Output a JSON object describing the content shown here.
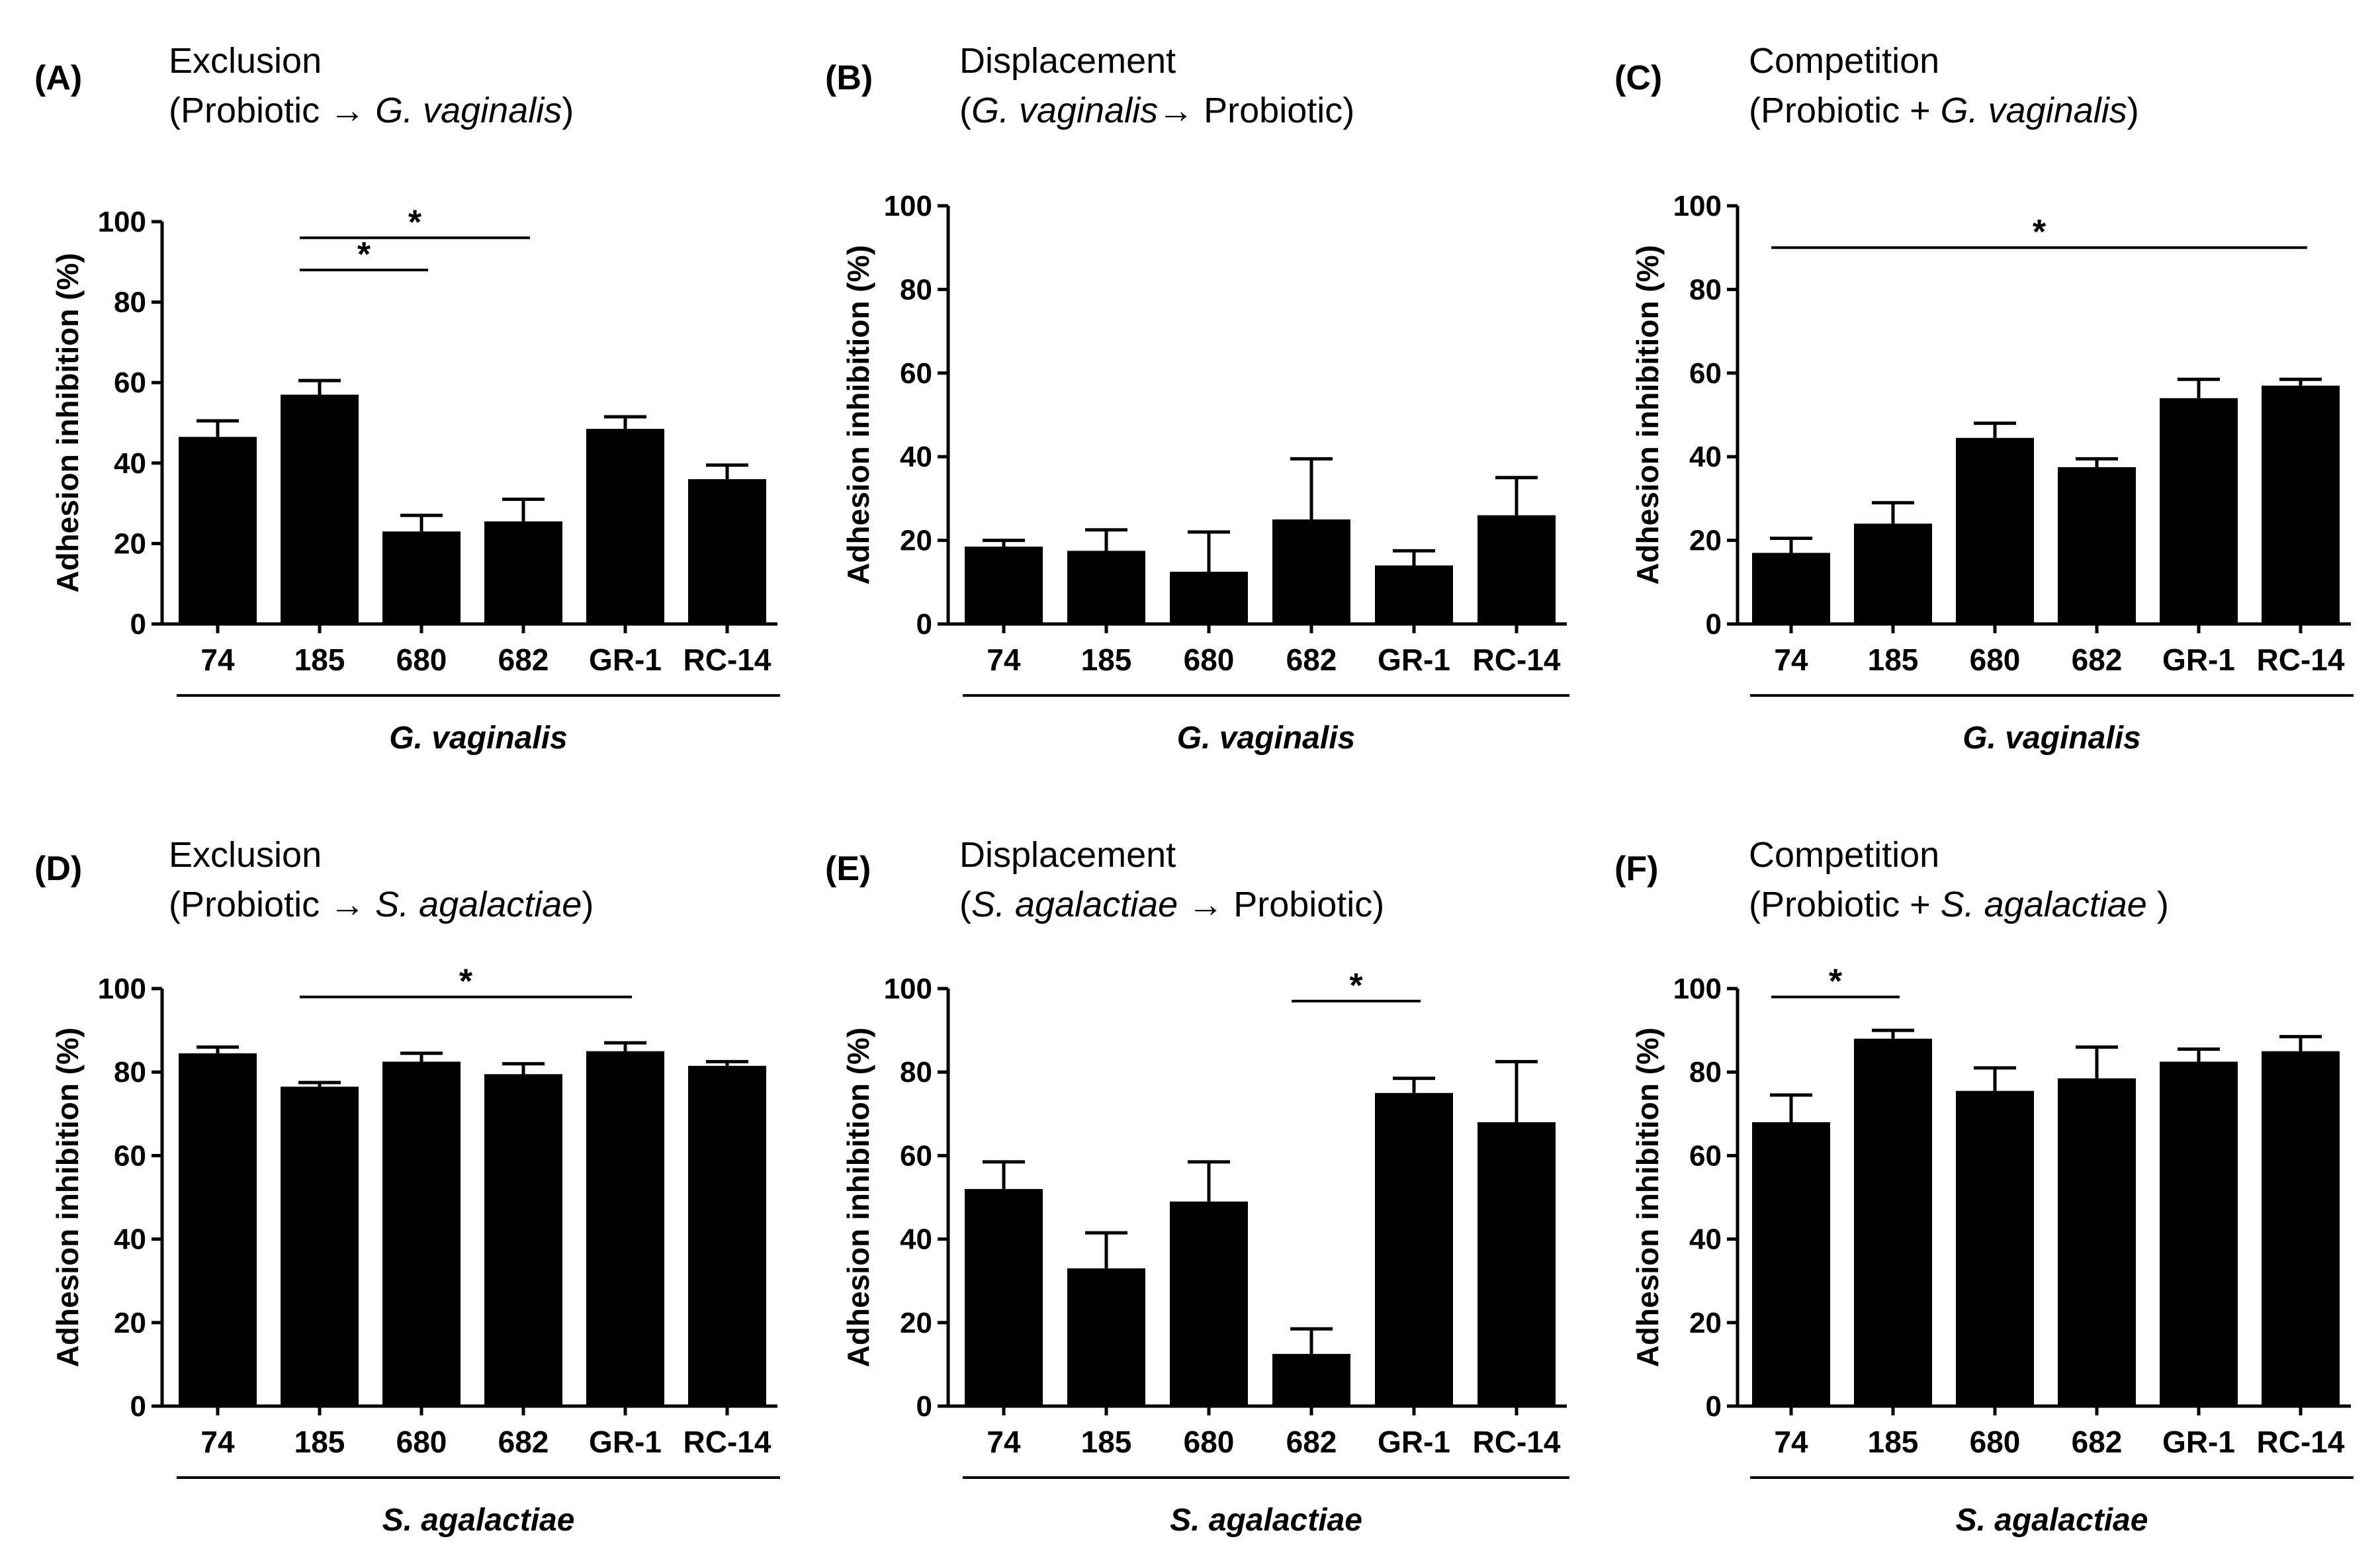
{
  "figure": {
    "background": "#ffffff",
    "bar_color": "#000000"
  },
  "chart_data": [
    {
      "type": "bar",
      "panel": "(A)",
      "title_line1": "Exclusion",
      "title_line2": [
        {
          "text": "(Probiotic → ",
          "italic": false
        },
        {
          "text": "G. vaginalis",
          "italic": true
        },
        {
          "text": ")",
          "italic": false
        }
      ],
      "categories": [
        "74",
        "185",
        "680",
        "682",
        "GR-1",
        "RC-14"
      ],
      "values": [
        46.5,
        57,
        23,
        25.5,
        48.5,
        36
      ],
      "errors": [
        4,
        3.5,
        4,
        5.5,
        3,
        3.5
      ],
      "ylabel": "Adhesion inhibition (%)",
      "xlabel": "G. vaginalis",
      "ylim": [
        0,
        100
      ],
      "yticks": [
        "0",
        "20",
        "40",
        "60",
        "80",
        "100"
      ],
      "significance": [
        {
          "from": 1,
          "to": 2,
          "level": 88,
          "label": "*"
        },
        {
          "from": 1,
          "to": 3,
          "level": 96,
          "label": "*"
        }
      ]
    },
    {
      "type": "bar",
      "panel": "(B)",
      "title_line1": "Displacement",
      "title_line2": [
        {
          "text": "(",
          "italic": false
        },
        {
          "text": "G. vaginalis",
          "italic": true
        },
        {
          "text": "→ Probiotic)",
          "italic": false
        }
      ],
      "categories": [
        "74",
        "185",
        "680",
        "682",
        "GR-1",
        "RC-14"
      ],
      "values": [
        18.5,
        17.5,
        12.5,
        25,
        14,
        26
      ],
      "errors": [
        1.5,
        5,
        9.5,
        14.5,
        3.5,
        9
      ],
      "ylabel": "Adhesion inhibition (%)",
      "xlabel": "G. vaginalis",
      "ylim": [
        0,
        100
      ],
      "yticks": [
        "0",
        "20",
        "40",
        "60",
        "80",
        "100"
      ],
      "significance": []
    },
    {
      "type": "bar",
      "panel": "(C)",
      "title_line1": "Competition",
      "title_line2": [
        {
          "text": "(Probiotic + ",
          "italic": false
        },
        {
          "text": "G. vaginalis",
          "italic": true
        },
        {
          "text": ")",
          "italic": false
        }
      ],
      "categories": [
        "74",
        "185",
        "680",
        "682",
        "GR-1",
        "RC-14"
      ],
      "values": [
        17,
        24,
        44.5,
        37.5,
        54,
        57
      ],
      "errors": [
        3.5,
        5,
        3.5,
        2,
        4.5,
        1.5
      ],
      "ylabel": "Adhesion inhibition (%)",
      "xlabel": "G. vaginalis",
      "ylim": [
        0,
        100
      ],
      "yticks": [
        "0",
        "20",
        "40",
        "60",
        "80",
        "100"
      ],
      "significance": [
        {
          "from": 0,
          "to": 5,
          "level": 90,
          "label": "*"
        }
      ]
    },
    {
      "type": "bar",
      "panel": "(D)",
      "title_line1": "Exclusion",
      "title_line2": [
        {
          "text": "(Probiotic → ",
          "italic": false
        },
        {
          "text": "S. agalactiae",
          "italic": true
        },
        {
          "text": ")",
          "italic": false
        }
      ],
      "categories": [
        "74",
        "185",
        "680",
        "682",
        "GR-1",
        "RC-14"
      ],
      "values": [
        84.5,
        76.5,
        82.5,
        79.5,
        85,
        81.5
      ],
      "errors": [
        1.5,
        1,
        2,
        2.5,
        2,
        1
      ],
      "ylabel": "Adhesion inhibition (%)",
      "xlabel": "S. agalactiae",
      "ylim": [
        0,
        100
      ],
      "yticks": [
        "0",
        "20",
        "40",
        "60",
        "80",
        "100"
      ],
      "significance": [
        {
          "from": 1,
          "to": 4,
          "level": 98,
          "label": "*"
        }
      ]
    },
    {
      "type": "bar",
      "panel": "(E)",
      "title_line1": "Displacement",
      "title_line2": [
        {
          "text": "(",
          "italic": false
        },
        {
          "text": "S. agalactiae",
          "italic": true
        },
        {
          "text": " → Probiotic)",
          "italic": false
        }
      ],
      "categories": [
        "74",
        "185",
        "680",
        "682",
        "GR-1",
        "RC-14"
      ],
      "values": [
        52,
        33,
        49,
        12.5,
        75,
        68
      ],
      "errors": [
        6.5,
        8.5,
        9.5,
        6,
        3.5,
        14.5
      ],
      "ylabel": "Adhesion inhibition (%)",
      "xlabel": "S. agalactiae",
      "ylim": [
        0,
        100
      ],
      "yticks": [
        "0",
        "20",
        "40",
        "60",
        "80",
        "100"
      ],
      "significance": [
        {
          "from": 3,
          "to": 4,
          "level": 97,
          "label": "*"
        }
      ]
    },
    {
      "type": "bar",
      "panel": "(F)",
      "title_line1": "Competition",
      "title_line2": [
        {
          "text": "(Probiotic + ",
          "italic": false
        },
        {
          "text": "S. agalactiae",
          "italic": true
        },
        {
          "text": " )",
          "italic": false
        }
      ],
      "categories": [
        "74",
        "185",
        "680",
        "682",
        "GR-1",
        "RC-14"
      ],
      "values": [
        68,
        88,
        75.5,
        78.5,
        82.5,
        85
      ],
      "errors": [
        6.5,
        2,
        5.5,
        7.5,
        3,
        3.5
      ],
      "ylabel": "Adhesion inhibition (%)",
      "xlabel": "S. agalactiae",
      "ylim": [
        0,
        100
      ],
      "yticks": [
        "0",
        "20",
        "40",
        "60",
        "80",
        "100"
      ],
      "significance": [
        {
          "from": 0,
          "to": 1,
          "level": 98,
          "label": "*"
        }
      ]
    }
  ]
}
